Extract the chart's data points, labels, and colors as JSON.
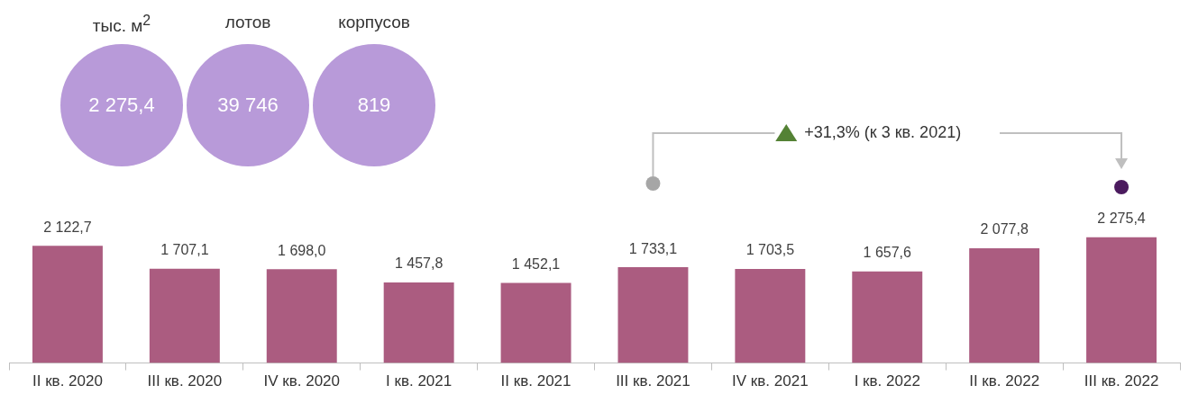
{
  "chart_data": {
    "type": "bar",
    "categories": [
      "II кв. 2020",
      "III кв. 2020",
      "IV кв. 2020",
      "I кв. 2021",
      "II кв. 2021",
      "III кв. 2021",
      "IV кв. 2021",
      "I кв. 2022",
      "II кв. 2022",
      "III кв. 2022"
    ],
    "values": [
      2122.7,
      1707.1,
      1698.0,
      1457.8,
      1452.1,
      1733.1,
      1703.5,
      1657.6,
      2077.8,
      2275.4
    ],
    "value_labels": [
      "2 122,7",
      "1 707,1",
      "1 698,0",
      "1 457,8",
      "1 452,1",
      "1 733,1",
      "1 703,5",
      "1 657,6",
      "2 077,8",
      "2 275,4"
    ],
    "color": "#ab5c80",
    "grid": false,
    "legend": false,
    "annotations": [
      "тыс. м$^{2}$",
      "2 275,4",
      "лотов",
      "39 746",
      "корпусов",
      "819",
      "+31,3% (к 3 кв. 2021)"
    ]
  }
}
